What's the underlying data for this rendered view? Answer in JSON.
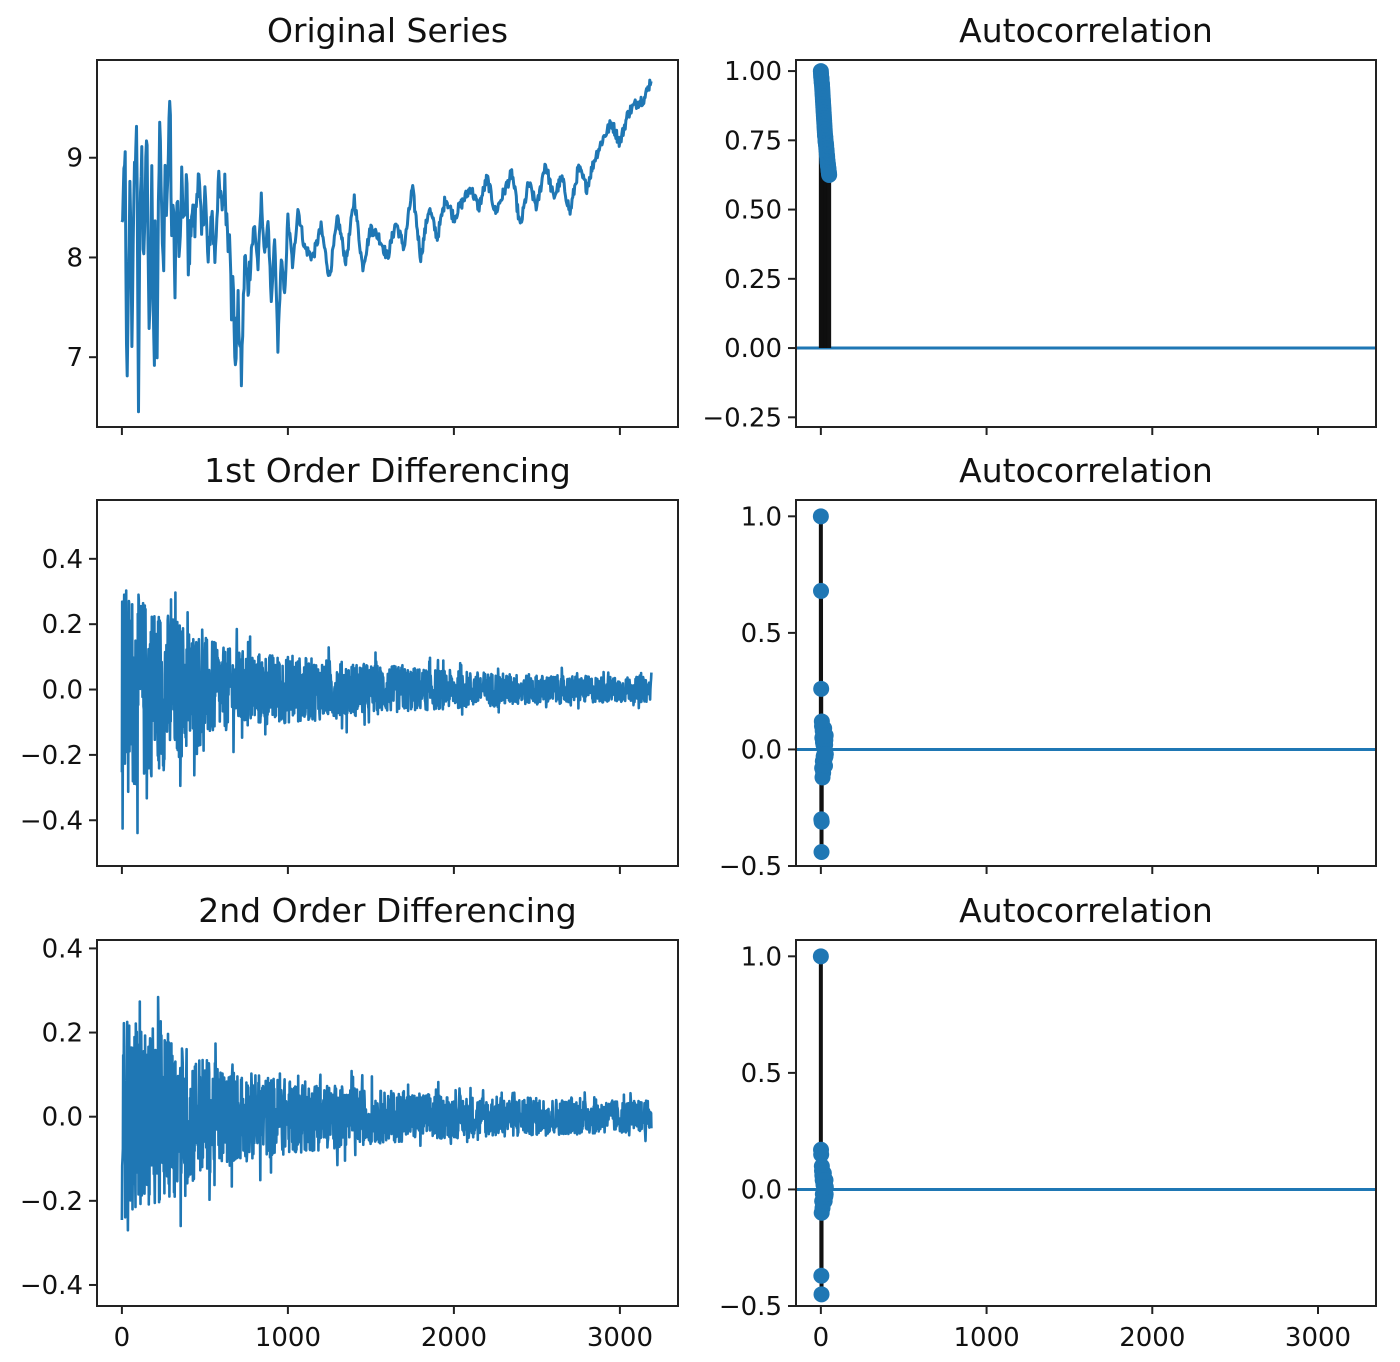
{
  "figure": {
    "colors": {
      "line": "#1f77b4",
      "stem": "#111111",
      "axes": "#222222",
      "background": "#ffffff"
    }
  },
  "chart_data": [
    {
      "id": "original",
      "type": "line",
      "title": "Original Series",
      "xlim": [
        -150,
        3350
      ],
      "ylim": [
        6.3,
        9.98
      ],
      "xticks": [
        0,
        1000,
        2000,
        3000
      ],
      "xtick_labels": [],
      "yticks": [
        7,
        8,
        9
      ],
      "ytick_labels": [
        "7",
        "8",
        "9"
      ],
      "n_points": 3200,
      "series": [
        {
          "x": [
            0,
            20,
            30,
            50,
            60,
            75,
            90,
            100,
            110,
            120,
            130,
            140,
            150,
            165,
            180,
            195,
            200,
            210,
            220,
            230,
            250,
            260,
            270,
            290,
            300,
            310,
            320,
            330,
            350,
            360,
            375,
            390,
            400,
            420,
            440,
            460,
            480,
            500,
            520,
            540,
            560,
            580,
            600,
            620,
            640,
            650,
            660,
            670,
            680,
            690,
            700,
            720,
            740,
            760,
            780,
            800,
            820,
            840,
            860,
            880,
            900,
            920,
            940,
            960,
            980,
            1000,
            1030,
            1060,
            1100,
            1150,
            1200,
            1250,
            1300,
            1350,
            1400,
            1450,
            1500,
            1550,
            1600,
            1650,
            1700,
            1750,
            1800,
            1850,
            1900,
            1950,
            2000,
            2050,
            2100,
            2150,
            2200,
            2250,
            2300,
            2350,
            2400,
            2450,
            2500,
            2550,
            2600,
            2650,
            2700,
            2750,
            2800,
            2850,
            2900,
            2950,
            3000,
            3050,
            3100,
            3150,
            3190
          ],
          "values": [
            8.3,
            9.0,
            6.5,
            8.9,
            7.2,
            8.8,
            9.3,
            6.5,
            8.6,
            9.0,
            8.0,
            8.5,
            9.35,
            7.0,
            8.8,
            6.75,
            8.3,
            6.7,
            8.6,
            9.35,
            7.8,
            9.0,
            8.4,
            9.65,
            8.2,
            8.6,
            7.6,
            8.6,
            8.0,
            8.8,
            8.2,
            8.9,
            7.8,
            8.5,
            8.3,
            8.9,
            8.2,
            8.7,
            7.9,
            8.5,
            8.0,
            8.75,
            8.5,
            8.7,
            8.2,
            8.4,
            7.3,
            8.0,
            6.85,
            7.2,
            7.5,
            6.8,
            8.0,
            7.7,
            8.1,
            8.3,
            7.9,
            8.6,
            8.0,
            8.4,
            7.5,
            8.2,
            7.1,
            8.0,
            7.6,
            8.4,
            7.9,
            8.5,
            8.1,
            8.0,
            8.3,
            7.8,
            8.4,
            7.95,
            8.6,
            7.9,
            8.3,
            8.2,
            8.0,
            8.35,
            8.1,
            8.7,
            8.0,
            8.5,
            8.2,
            8.6,
            8.4,
            8.55,
            8.7,
            8.5,
            8.8,
            8.45,
            8.65,
            8.85,
            8.3,
            8.75,
            8.5,
            8.95,
            8.6,
            8.8,
            8.45,
            8.9,
            8.7,
            9.0,
            9.2,
            9.35,
            9.15,
            9.45,
            9.55,
            9.6,
            9.8
          ]
        }
      ]
    },
    {
      "id": "acf-original",
      "type": "stem",
      "title": "Autocorrelation",
      "xlim": [
        -150,
        3350
      ],
      "ylim": [
        -0.285,
        1.04
      ],
      "xticks": [
        0,
        1000,
        2000,
        3000
      ],
      "xtick_labels": [],
      "yticks": [
        -0.25,
        0,
        0.25,
        0.5,
        0.75,
        1.0
      ],
      "ytick_labels": [
        "−0.25",
        "0.00",
        "0.25",
        "0.50",
        "0.75",
        "1.00"
      ],
      "series": [
        {
          "lags": [
            0,
            1,
            2,
            3,
            4,
            5,
            6,
            7,
            8,
            9,
            10,
            11,
            12,
            13,
            14,
            15,
            16,
            17,
            18,
            19,
            20,
            21,
            22,
            23,
            24,
            25,
            26,
            27,
            28,
            29,
            30,
            31,
            32,
            33,
            34,
            35,
            36,
            37,
            38,
            39,
            40,
            41,
            42,
            43,
            44,
            45,
            46,
            47,
            48,
            49,
            50
          ],
          "values": [
            1.0,
            0.99,
            0.98,
            0.975,
            0.97,
            0.96,
            0.955,
            0.95,
            0.94,
            0.93,
            0.92,
            0.91,
            0.9,
            0.89,
            0.88,
            0.87,
            0.86,
            0.85,
            0.84,
            0.83,
            0.82,
            0.81,
            0.8,
            0.79,
            0.78,
            0.77,
            0.765,
            0.76,
            0.75,
            0.745,
            0.74,
            0.735,
            0.73,
            0.72,
            0.715,
            0.71,
            0.7,
            0.695,
            0.69,
            0.68,
            0.675,
            0.67,
            0.665,
            0.66,
            0.655,
            0.65,
            0.645,
            0.64,
            0.635,
            0.63,
            0.625
          ]
        }
      ],
      "zero_line": true
    },
    {
      "id": "diff1",
      "type": "line",
      "title": "1st Order Differencing",
      "xlim": [
        -150,
        3350
      ],
      "ylim": [
        -0.54,
        0.58
      ],
      "xticks": [
        0,
        1000,
        2000,
        3000
      ],
      "xtick_labels": [],
      "yticks": [
        -0.4,
        -0.2,
        0.0,
        0.2,
        0.4
      ],
      "ytick_labels": [
        "−0.4",
        "−0.2",
        "0.0",
        "0.2",
        "0.4"
      ],
      "n_points": 3200,
      "envelope": {
        "x": [
          0,
          100,
          300,
          600,
          1000,
          1500,
          2000,
          2500,
          3000,
          3200
        ],
        "amplitude": [
          0.5,
          0.45,
          0.36,
          0.2,
          0.16,
          0.12,
          0.09,
          0.07,
          0.06,
          0.06
        ]
      }
    },
    {
      "id": "acf-diff1",
      "type": "stem",
      "title": "Autocorrelation",
      "xlim": [
        -150,
        3350
      ],
      "ylim": [
        -0.5,
        1.07
      ],
      "xticks": [
        0,
        1000,
        2000,
        3000
      ],
      "xtick_labels": [],
      "yticks": [
        -0.5,
        0.0,
        0.5,
        1.0
      ],
      "ytick_labels": [
        "−0.5",
        "0.0",
        "0.5",
        "1.0"
      ],
      "series": [
        {
          "lags": [
            0,
            1,
            2,
            3,
            4,
            5,
            6,
            7,
            8,
            9,
            10,
            11,
            12,
            13,
            14,
            15,
            16,
            17,
            18,
            19,
            20,
            21,
            22,
            23,
            24,
            25,
            26,
            27,
            28,
            29,
            30
          ],
          "values": [
            1.0,
            0.68,
            0.26,
            -0.3,
            -0.44,
            -0.31,
            0.12,
            0.1,
            -0.08,
            0.05,
            -0.12,
            0.08,
            -0.05,
            0.03,
            -0.1,
            0.06,
            0.02,
            -0.03,
            0.04,
            -0.06,
            0.09,
            -0.02,
            0.05,
            -0.04,
            0.03,
            -0.07,
            0.02,
            0.04,
            -0.03,
            0.06,
            -0.02
          ]
        }
      ],
      "zero_line": true
    },
    {
      "id": "diff2",
      "type": "line",
      "title": "2nd Order Differencing",
      "xlim": [
        -150,
        3350
      ],
      "ylim": [
        -0.45,
        0.42
      ],
      "xticks": [
        0,
        1000,
        2000,
        3000
      ],
      "xtick_labels": [
        "0",
        "1000",
        "2000",
        "3000"
      ],
      "yticks": [
        -0.4,
        -0.2,
        0.0,
        0.2,
        0.4
      ],
      "ytick_labels": [
        "−0.4",
        "−0.2",
        "0.0",
        "0.2",
        "0.4"
      ],
      "n_points": 3200,
      "envelope": {
        "x": [
          0,
          100,
          300,
          600,
          1000,
          1500,
          2000,
          2500,
          3000,
          3200
        ],
        "amplitude": [
          0.38,
          0.34,
          0.3,
          0.18,
          0.14,
          0.1,
          0.08,
          0.07,
          0.06,
          0.06
        ]
      }
    },
    {
      "id": "acf-diff2",
      "type": "stem",
      "title": "Autocorrelation",
      "xlim": [
        -150,
        3350
      ],
      "ylim": [
        -0.5,
        1.07
      ],
      "xticks": [
        0,
        1000,
        2000,
        3000
      ],
      "xtick_labels": [
        "0",
        "1000",
        "2000",
        "3000"
      ],
      "yticks": [
        -0.5,
        0.0,
        0.5,
        1.0
      ],
      "ytick_labels": [
        "−0.5",
        "0.0",
        "0.5",
        "1.0"
      ],
      "series": [
        {
          "lags": [
            0,
            1,
            2,
            3,
            4,
            5,
            6,
            7,
            8,
            9,
            10,
            11,
            12,
            13,
            14,
            15,
            16,
            17,
            18,
            19,
            20,
            21,
            22,
            23,
            24,
            25,
            26,
            27,
            28,
            29,
            30
          ],
          "values": [
            1.0,
            0.17,
            0.15,
            -0.37,
            -0.45,
            -0.1,
            0.1,
            0.08,
            -0.05,
            0.06,
            -0.08,
            0.04,
            -0.02,
            0.05,
            -0.06,
            0.03,
            0.02,
            -0.04,
            0.07,
            -0.03,
            0.05,
            -0.02,
            0.03,
            -0.05,
            0.04,
            -0.01,
            0.02,
            -0.03,
            0.04,
            -0.02,
            0.01
          ]
        }
      ],
      "zero_line": true
    }
  ]
}
